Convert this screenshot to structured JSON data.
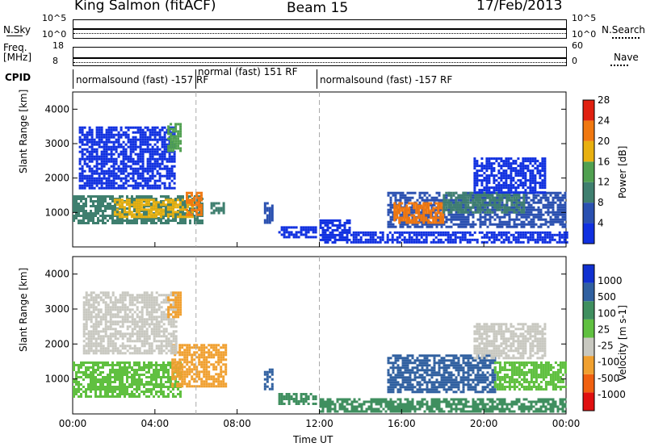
{
  "header": {
    "station": "King Salmon (fitACF)",
    "beam": "Beam 15",
    "date": "17/Feb/2013"
  },
  "aux_panels": {
    "nsky_label": "N.Sky",
    "nsky_ticks": [
      "10^5",
      "10^0"
    ],
    "nsearch_label": "N.Search",
    "nsearch_ticks": [
      "10^5",
      "10^0"
    ],
    "freq_label_line1": "Freq.",
    "freq_label_line2": "[MHz]",
    "freq_ticks": [
      "18",
      "8"
    ],
    "nave_label": "Nave",
    "nave_ticks": [
      "60",
      "0"
    ],
    "cpid_label": "CPID",
    "cpid_segments": [
      {
        "label": "normalsound (fast) -157 RF",
        "start_hour": 0,
        "end_hour": 6
      },
      {
        "label": "normal (fast) 151 RF",
        "start_hour": 6,
        "end_hour": 12
      },
      {
        "label": "normalsound (fast) -157 RF",
        "start_hour": 12,
        "end_hour": 24
      }
    ]
  },
  "x_axis": {
    "label": "Time UT",
    "ticks": [
      "00:00",
      "04:00",
      "08:00",
      "12:00",
      "16:00",
      "20:00",
      "00:00"
    ]
  },
  "panels": {
    "power_ylabel": "Slant Range [km]",
    "velocity_ylabel": "Slant Range [km]",
    "y_ticks": [
      "1000",
      "2000",
      "3000",
      "4000"
    ]
  },
  "power_scale": {
    "label": "Power [dB]",
    "ticks": [
      "4",
      "8",
      "12",
      "16",
      "20",
      "24",
      "28"
    ],
    "colors": [
      "#1030e0",
      "#2a50b0",
      "#3f7f6f",
      "#50a050",
      "#e8b010",
      "#f07810",
      "#e02010"
    ]
  },
  "velocity_scale": {
    "label": "Velocity [m s-1]",
    "ticks": [
      "1000",
      "500",
      "100",
      "25",
      "-25",
      "-100",
      "-500",
      "-1000"
    ],
    "colors": [
      "#1030d0",
      "#3060a0",
      "#3f8f5f",
      "#60c040",
      "#c8c8c0",
      "#f0a030",
      "#f06010",
      "#e01010"
    ]
  },
  "chart_data": {
    "type": "heatmap",
    "x_unit": "hour UT",
    "xlim": [
      0,
      24
    ],
    "ylim": [
      0,
      4500
    ],
    "vertical_markers_hours": [
      6,
      12
    ],
    "power_echo_regions": [
      {
        "start_hour": 0.0,
        "end_hour": 6.3,
        "range_min_km": 700,
        "range_max_km": 1500,
        "power_db": 14
      },
      {
        "start_hour": 2.0,
        "end_hour": 5.8,
        "range_min_km": 900,
        "range_max_km": 1400,
        "power_db": 22
      },
      {
        "start_hour": 5.5,
        "end_hour": 6.3,
        "range_min_km": 900,
        "range_max_km": 1600,
        "power_db": 26
      },
      {
        "start_hour": 0.3,
        "end_hour": 5.0,
        "range_min_km": 1700,
        "range_max_km": 3500,
        "power_db": 6
      },
      {
        "start_hour": 4.6,
        "end_hour": 5.2,
        "range_min_km": 2800,
        "range_max_km": 3600,
        "power_db": 16
      },
      {
        "start_hour": 6.7,
        "end_hour": 7.4,
        "range_min_km": 1000,
        "range_max_km": 1300,
        "power_db": 12
      },
      {
        "start_hour": 9.3,
        "end_hour": 9.7,
        "range_min_km": 700,
        "range_max_km": 1300,
        "power_db": 10
      },
      {
        "start_hour": 10.0,
        "end_hour": 11.8,
        "range_min_km": 300,
        "range_max_km": 600,
        "power_db": 5
      },
      {
        "start_hour": 12.0,
        "end_hour": 13.5,
        "range_min_km": 100,
        "range_max_km": 800,
        "power_db": 5
      },
      {
        "start_hour": 13.5,
        "end_hour": 24.0,
        "range_min_km": 100,
        "range_max_km": 450,
        "power_db": 5
      },
      {
        "start_hour": 15.3,
        "end_hour": 24.0,
        "range_min_km": 600,
        "range_max_km": 1600,
        "power_db": 8
      },
      {
        "start_hour": 15.6,
        "end_hour": 18.0,
        "range_min_km": 700,
        "range_max_km": 1300,
        "power_db": 24
      },
      {
        "start_hour": 18.0,
        "end_hour": 22.0,
        "range_min_km": 1000,
        "range_max_km": 1600,
        "power_db": 14
      },
      {
        "start_hour": 19.5,
        "end_hour": 23.0,
        "range_min_km": 1600,
        "range_max_km": 2600,
        "power_db": 5
      }
    ],
    "velocity_echo_regions": [
      {
        "start_hour": 0.0,
        "end_hour": 5.2,
        "range_min_km": 500,
        "range_max_km": 1500,
        "velocity": 0
      },
      {
        "start_hour": 4.8,
        "end_hour": 7.5,
        "range_min_km": 800,
        "range_max_km": 2000,
        "velocity": -300
      },
      {
        "start_hour": 0.5,
        "end_hour": 5.0,
        "range_min_km": 1700,
        "range_max_km": 3500,
        "velocity": -30
      },
      {
        "start_hour": 4.6,
        "end_hour": 5.2,
        "range_min_km": 2800,
        "range_max_km": 3500,
        "velocity": -200
      },
      {
        "start_hour": 9.3,
        "end_hour": 9.7,
        "range_min_km": 700,
        "range_max_km": 1300,
        "velocity": 300
      },
      {
        "start_hour": 10.0,
        "end_hour": 11.8,
        "range_min_km": 300,
        "range_max_km": 600,
        "velocity": 60
      },
      {
        "start_hour": 12.0,
        "end_hour": 24.0,
        "range_min_km": 100,
        "range_max_km": 450,
        "velocity": 40
      },
      {
        "start_hour": 15.3,
        "end_hour": 20.5,
        "range_min_km": 600,
        "range_max_km": 1700,
        "velocity": 150
      },
      {
        "start_hour": 20.5,
        "end_hour": 24.0,
        "range_min_km": 700,
        "range_max_km": 1500,
        "velocity": 0
      },
      {
        "start_hour": 19.5,
        "end_hour": 23.0,
        "range_min_km": 1600,
        "range_max_km": 2600,
        "velocity": -80
      }
    ]
  }
}
